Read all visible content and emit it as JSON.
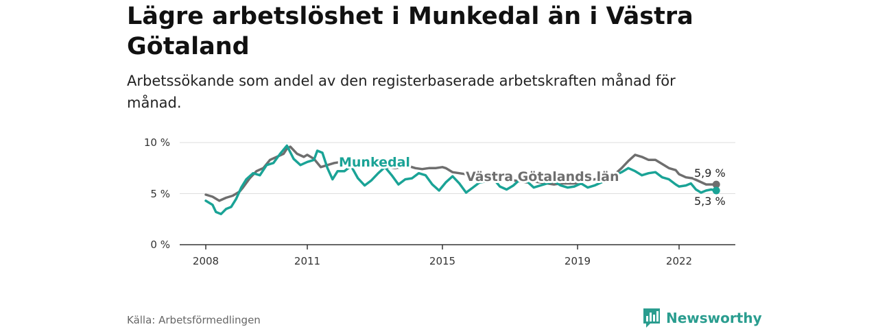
{
  "header": {
    "title": "Lägre arbetslöshet i Munkedal än i Västra Götaland",
    "subtitle": "Arbetssökande som andel av den registerbaserade arbetskraften månad för månad."
  },
  "footer": {
    "source": "Källa: Arbetsförmedlingen",
    "brand": "Newsworthy"
  },
  "colors": {
    "munkedal": "#1aa396",
    "region": "#6e6e6e",
    "grid": "#dddddd",
    "axis": "#333333",
    "brand": "#2a9d8f"
  },
  "chart_data": {
    "type": "line",
    "title": "Lägre arbetslöshet i Munkedal än i Västra Götaland",
    "xlabel": "",
    "ylabel": "",
    "ylim": [
      0,
      10
    ],
    "xlim": [
      2008,
      2023.2
    ],
    "y_ticks": [
      {
        "value": 0,
        "label": "0 %"
      },
      {
        "value": 5,
        "label": "5 %"
      },
      {
        "value": 10,
        "label": "10 %"
      }
    ],
    "x_ticks": [
      {
        "value": 2008,
        "label": "2008"
      },
      {
        "value": 2011,
        "label": "2011"
      },
      {
        "value": 2015,
        "label": "2015"
      },
      {
        "value": 2019,
        "label": "2019"
      },
      {
        "value": 2022,
        "label": "2022"
      }
    ],
    "grid": true,
    "series": [
      {
        "name": "Västra Götalands län",
        "label": "Västra Götalands län",
        "end_label": "5,9 %",
        "points": [
          [
            2008.0,
            4.9
          ],
          [
            2008.2,
            4.7
          ],
          [
            2008.4,
            4.3
          ],
          [
            2008.6,
            4.6
          ],
          [
            2008.8,
            4.8
          ],
          [
            2009.0,
            5.2
          ],
          [
            2009.1,
            5.6
          ],
          [
            2009.3,
            6.5
          ],
          [
            2009.5,
            7.2
          ],
          [
            2009.7,
            7.5
          ],
          [
            2009.9,
            8.3
          ],
          [
            2010.1,
            8.6
          ],
          [
            2010.3,
            8.9
          ],
          [
            2010.4,
            9.4
          ],
          [
            2010.5,
            9.6
          ],
          [
            2010.7,
            8.9
          ],
          [
            2010.9,
            8.6
          ],
          [
            2011.0,
            8.8
          ],
          [
            2011.2,
            8.4
          ],
          [
            2011.4,
            7.6
          ],
          [
            2011.6,
            7.8
          ],
          [
            2011.8,
            8.0
          ],
          [
            2012.0,
            8.1
          ],
          [
            2012.2,
            8.0
          ],
          [
            2012.4,
            7.9
          ],
          [
            2012.6,
            7.7
          ],
          [
            2012.8,
            7.8
          ],
          [
            2013.0,
            7.9
          ],
          [
            2013.2,
            7.8
          ],
          [
            2013.4,
            7.6
          ],
          [
            2013.6,
            7.5
          ],
          [
            2013.8,
            7.6
          ],
          [
            2014.0,
            7.7
          ],
          [
            2014.2,
            7.5
          ],
          [
            2014.4,
            7.4
          ],
          [
            2014.6,
            7.5
          ],
          [
            2014.8,
            7.5
          ],
          [
            2015.0,
            7.6
          ],
          [
            2015.1,
            7.5
          ],
          [
            2015.3,
            7.1
          ],
          [
            2015.5,
            7.0
          ],
          [
            2015.7,
            6.9
          ],
          [
            2015.9,
            6.9
          ],
          [
            2016.1,
            6.7
          ],
          [
            2016.3,
            6.6
          ],
          [
            2016.5,
            6.4
          ],
          [
            2016.7,
            6.5
          ],
          [
            2016.9,
            6.4
          ],
          [
            2017.1,
            6.3
          ],
          [
            2017.3,
            6.2
          ],
          [
            2017.5,
            6.1
          ],
          [
            2017.7,
            6.2
          ],
          [
            2017.9,
            6.1
          ],
          [
            2018.1,
            6.0
          ],
          [
            2018.3,
            5.9
          ],
          [
            2018.5,
            6.0
          ],
          [
            2018.7,
            6.0
          ],
          [
            2018.9,
            6.0
          ],
          [
            2019.1,
            6.1
          ],
          [
            2019.3,
            6.3
          ],
          [
            2019.5,
            6.4
          ],
          [
            2019.7,
            6.5
          ],
          [
            2019.9,
            6.7
          ],
          [
            2020.1,
            6.9
          ],
          [
            2020.3,
            7.5
          ],
          [
            2020.5,
            8.2
          ],
          [
            2020.7,
            8.8
          ],
          [
            2020.9,
            8.6
          ],
          [
            2021.1,
            8.3
          ],
          [
            2021.3,
            8.3
          ],
          [
            2021.5,
            7.9
          ],
          [
            2021.7,
            7.5
          ],
          [
            2021.9,
            7.3
          ],
          [
            2022.0,
            6.9
          ],
          [
            2022.2,
            6.6
          ],
          [
            2022.4,
            6.5
          ],
          [
            2022.6,
            6.2
          ],
          [
            2022.8,
            5.9
          ],
          [
            2023.0,
            5.9
          ],
          [
            2023.1,
            5.9
          ]
        ]
      },
      {
        "name": "Munkedal",
        "label": "Munkedal",
        "end_label": "5,3 %",
        "points": [
          [
            2008.0,
            4.3
          ],
          [
            2008.2,
            3.9
          ],
          [
            2008.3,
            3.2
          ],
          [
            2008.45,
            3.0
          ],
          [
            2008.6,
            3.5
          ],
          [
            2008.75,
            3.7
          ],
          [
            2008.9,
            4.5
          ],
          [
            2009.05,
            5.6
          ],
          [
            2009.2,
            6.4
          ],
          [
            2009.4,
            7.0
          ],
          [
            2009.6,
            6.8
          ],
          [
            2009.8,
            7.8
          ],
          [
            2010.0,
            8.0
          ],
          [
            2010.2,
            8.9
          ],
          [
            2010.4,
            9.7
          ],
          [
            2010.6,
            8.4
          ],
          [
            2010.8,
            7.8
          ],
          [
            2011.0,
            8.1
          ],
          [
            2011.2,
            8.3
          ],
          [
            2011.3,
            9.2
          ],
          [
            2011.45,
            9.0
          ],
          [
            2011.6,
            7.5
          ],
          [
            2011.75,
            6.4
          ],
          [
            2011.9,
            7.2
          ],
          [
            2012.1,
            7.2
          ],
          [
            2012.3,
            7.7
          ],
          [
            2012.5,
            6.5
          ],
          [
            2012.7,
            5.8
          ],
          [
            2012.9,
            6.3
          ],
          [
            2013.1,
            7.0
          ],
          [
            2013.3,
            7.6
          ],
          [
            2013.5,
            6.8
          ],
          [
            2013.7,
            5.9
          ],
          [
            2013.9,
            6.4
          ],
          [
            2014.1,
            6.5
          ],
          [
            2014.3,
            7.0
          ],
          [
            2014.5,
            6.8
          ],
          [
            2014.7,
            5.9
          ],
          [
            2014.9,
            5.3
          ],
          [
            2015.1,
            6.1
          ],
          [
            2015.3,
            6.7
          ],
          [
            2015.5,
            6.0
          ],
          [
            2015.7,
            5.1
          ],
          [
            2015.9,
            5.6
          ],
          [
            2016.1,
            6.1
          ],
          [
            2016.3,
            6.2
          ],
          [
            2016.5,
            6.5
          ],
          [
            2016.7,
            5.7
          ],
          [
            2016.9,
            5.4
          ],
          [
            2017.1,
            5.8
          ],
          [
            2017.3,
            6.4
          ],
          [
            2017.5,
            6.2
          ],
          [
            2017.7,
            5.6
          ],
          [
            2017.9,
            5.8
          ],
          [
            2018.1,
            6.0
          ],
          [
            2018.3,
            6.2
          ],
          [
            2018.5,
            5.8
          ],
          [
            2018.7,
            5.6
          ],
          [
            2018.9,
            5.7
          ],
          [
            2019.1,
            6.0
          ],
          [
            2019.3,
            5.6
          ],
          [
            2019.5,
            5.8
          ],
          [
            2019.7,
            6.1
          ],
          [
            2019.9,
            6.4
          ],
          [
            2020.1,
            6.8
          ],
          [
            2020.3,
            7.1
          ],
          [
            2020.5,
            7.5
          ],
          [
            2020.7,
            7.2
          ],
          [
            2020.9,
            6.8
          ],
          [
            2021.1,
            7.0
          ],
          [
            2021.3,
            7.1
          ],
          [
            2021.5,
            6.6
          ],
          [
            2021.7,
            6.4
          ],
          [
            2021.9,
            5.9
          ],
          [
            2022.0,
            5.7
          ],
          [
            2022.2,
            5.8
          ],
          [
            2022.35,
            6.0
          ],
          [
            2022.5,
            5.4
          ],
          [
            2022.65,
            5.1
          ],
          [
            2022.8,
            5.3
          ],
          [
            2022.95,
            5.4
          ],
          [
            2023.1,
            5.3
          ]
        ]
      }
    ]
  }
}
